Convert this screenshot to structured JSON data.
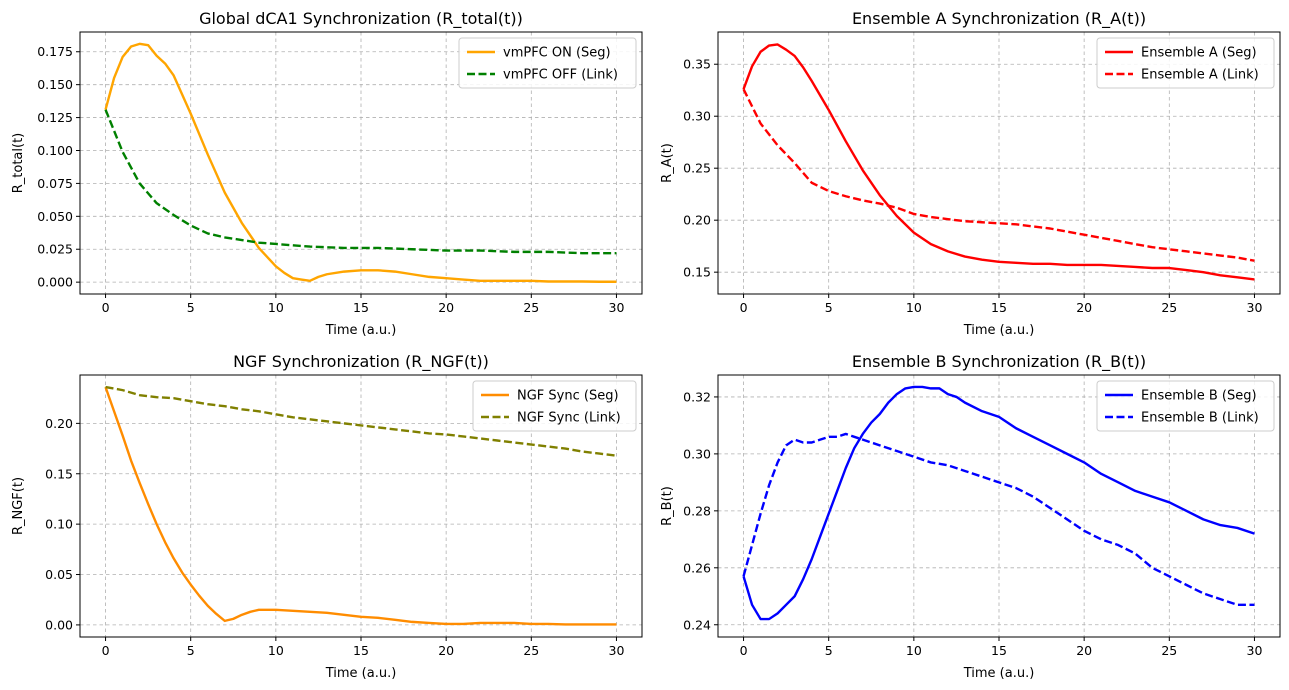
{
  "chart_data": [
    {
      "type": "line",
      "title": "Global dCA1 Synchronization (R_total(t))",
      "xlabel": "Time (a.u.)",
      "ylabel": "R_total(t)",
      "xlim": [
        -1.5,
        31.5
      ],
      "ylim": [
        -0.009,
        0.19
      ],
      "xticks": [
        0,
        5,
        10,
        15,
        20,
        25,
        30
      ],
      "yticks": [
        0.0,
        0.025,
        0.05,
        0.075,
        0.1,
        0.125,
        0.15,
        0.175
      ],
      "ytick_labels": [
        "0.000",
        "0.025",
        "0.050",
        "0.075",
        "0.100",
        "0.125",
        "0.150",
        "0.175"
      ],
      "grid": true,
      "legend_position": "top-right",
      "series": [
        {
          "name": "vmPFC ON (Seg)",
          "color": "#ffa500",
          "style": "solid",
          "x": [
            0,
            0.5,
            1,
            1.5,
            2,
            2.5,
            3,
            3.5,
            4,
            5,
            6,
            7,
            8,
            9,
            10,
            10.5,
            11,
            11.5,
            12,
            12.5,
            13,
            14,
            15,
            16,
            17,
            18,
            19,
            20,
            21,
            22,
            23,
            24,
            25,
            26,
            27,
            28,
            29,
            30
          ],
          "y": [
            0.131,
            0.155,
            0.171,
            0.179,
            0.181,
            0.18,
            0.172,
            0.166,
            0.157,
            0.128,
            0.097,
            0.068,
            0.045,
            0.026,
            0.012,
            0.007,
            0.003,
            0.002,
            0.001,
            0.004,
            0.006,
            0.008,
            0.009,
            0.009,
            0.008,
            0.006,
            0.004,
            0.003,
            0.002,
            0.001,
            0.001,
            0.001,
            0.001,
            0.0005,
            0.0005,
            0.0005,
            0.0003,
            0.0003
          ]
        },
        {
          "name": "vmPFC OFF (Link)",
          "color": "#008000",
          "style": "dashed",
          "x": [
            0,
            1,
            2,
            3,
            4,
            5,
            6,
            7,
            8,
            9,
            10,
            11,
            12,
            14,
            16,
            18,
            20,
            22,
            24,
            26,
            28,
            30
          ],
          "y": [
            0.131,
            0.099,
            0.075,
            0.06,
            0.051,
            0.043,
            0.037,
            0.034,
            0.032,
            0.03,
            0.029,
            0.028,
            0.027,
            0.026,
            0.026,
            0.025,
            0.024,
            0.024,
            0.023,
            0.023,
            0.022,
            0.022
          ]
        }
      ]
    },
    {
      "type": "line",
      "title": "Ensemble A Synchronization (R_A(t))",
      "xlabel": "Time (a.u.)",
      "ylabel": "R_A(t)",
      "xlim": [
        -1.5,
        31.5
      ],
      "ylim": [
        0.129,
        0.381
      ],
      "xticks": [
        0,
        5,
        10,
        15,
        20,
        25,
        30
      ],
      "yticks": [
        0.15,
        0.2,
        0.25,
        0.3,
        0.35
      ],
      "ytick_labels": [
        "0.15",
        "0.20",
        "0.25",
        "0.30",
        "0.35"
      ],
      "grid": true,
      "legend_position": "top-right",
      "series": [
        {
          "name": "Ensemble A (Seg)",
          "color": "#ff0000",
          "style": "solid",
          "x": [
            0,
            0.5,
            1,
            1.5,
            2,
            2.5,
            3,
            3.5,
            4,
            5,
            6,
            7,
            8,
            9,
            10,
            11,
            12,
            13,
            14,
            15,
            16,
            17,
            18,
            19,
            20,
            21,
            22,
            23,
            24,
            25,
            26,
            27,
            28,
            29,
            30
          ],
          "y": [
            0.326,
            0.348,
            0.362,
            0.368,
            0.369,
            0.364,
            0.358,
            0.347,
            0.334,
            0.306,
            0.276,
            0.248,
            0.224,
            0.204,
            0.188,
            0.177,
            0.17,
            0.165,
            0.162,
            0.16,
            0.159,
            0.158,
            0.158,
            0.157,
            0.157,
            0.157,
            0.156,
            0.155,
            0.154,
            0.154,
            0.152,
            0.15,
            0.147,
            0.145,
            0.143
          ]
        },
        {
          "name": "Ensemble A (Link)",
          "color": "#ff0000",
          "style": "dashed",
          "x": [
            0,
            1,
            2,
            3,
            4,
            5,
            6,
            7,
            8,
            9,
            10,
            11,
            12,
            13,
            14,
            15,
            16,
            17,
            18,
            19,
            20,
            21,
            22,
            23,
            24,
            25,
            26,
            27,
            28,
            29,
            30
          ],
          "y": [
            0.326,
            0.293,
            0.272,
            0.255,
            0.236,
            0.228,
            0.223,
            0.219,
            0.216,
            0.212,
            0.206,
            0.203,
            0.201,
            0.199,
            0.198,
            0.197,
            0.196,
            0.194,
            0.192,
            0.189,
            0.186,
            0.183,
            0.18,
            0.177,
            0.174,
            0.172,
            0.17,
            0.168,
            0.166,
            0.164,
            0.161
          ]
        }
      ]
    },
    {
      "type": "line",
      "title": "NGF Synchronization (R_NGF(t))",
      "xlabel": "Time (a.u.)",
      "ylabel": "R_NGF(t)",
      "xlim": [
        -1.5,
        31.5
      ],
      "ylim": [
        -0.012,
        0.248
      ],
      "xticks": [
        0,
        5,
        10,
        15,
        20,
        25,
        30
      ],
      "yticks": [
        0.0,
        0.05,
        0.1,
        0.15,
        0.2
      ],
      "ytick_labels": [
        "0.00",
        "0.05",
        "0.10",
        "0.15",
        "0.20"
      ],
      "grid": true,
      "legend_position": "top-right",
      "series": [
        {
          "name": "NGF Sync (Seg)",
          "color": "#ff8c00",
          "style": "solid",
          "x": [
            0,
            0.5,
            1,
            1.5,
            2,
            2.5,
            3,
            3.5,
            4,
            4.5,
            5,
            5.5,
            6,
            6.5,
            7,
            7.5,
            8,
            8.5,
            9,
            9.5,
            10,
            11,
            12,
            13,
            14,
            15,
            16,
            17,
            18,
            19,
            20,
            21,
            22,
            23,
            24,
            25,
            26,
            27,
            28,
            29,
            30
          ],
          "y": [
            0.236,
            0.212,
            0.188,
            0.163,
            0.141,
            0.12,
            0.1,
            0.082,
            0.066,
            0.052,
            0.04,
            0.029,
            0.019,
            0.011,
            0.004,
            0.006,
            0.01,
            0.013,
            0.015,
            0.015,
            0.015,
            0.014,
            0.013,
            0.012,
            0.01,
            0.008,
            0.007,
            0.005,
            0.003,
            0.002,
            0.001,
            0.001,
            0.002,
            0.002,
            0.002,
            0.001,
            0.001,
            0.0005,
            0.0005,
            0.0005,
            0.0005
          ]
        },
        {
          "name": "NGF Sync (Link)",
          "color": "#808000",
          "style": "dashed",
          "x": [
            0,
            1,
            2,
            3,
            4,
            5,
            6,
            7,
            8,
            9,
            10,
            11,
            12,
            13,
            14,
            15,
            16,
            17,
            18,
            19,
            20,
            21,
            22,
            23,
            24,
            25,
            26,
            27,
            28,
            29,
            30
          ],
          "y": [
            0.236,
            0.233,
            0.228,
            0.226,
            0.225,
            0.222,
            0.219,
            0.217,
            0.214,
            0.212,
            0.209,
            0.206,
            0.204,
            0.202,
            0.2,
            0.198,
            0.196,
            0.194,
            0.192,
            0.19,
            0.189,
            0.187,
            0.185,
            0.183,
            0.181,
            0.179,
            0.177,
            0.175,
            0.172,
            0.17,
            0.168
          ]
        }
      ]
    },
    {
      "type": "line",
      "title": "Ensemble B Synchronization (R_B(t))",
      "xlabel": "Time (a.u.)",
      "ylabel": "R_B(t)",
      "xlim": [
        -1.5,
        31.5
      ],
      "ylim": [
        0.2357,
        0.3277
      ],
      "xticks": [
        0,
        5,
        10,
        15,
        20,
        25,
        30
      ],
      "yticks": [
        0.24,
        0.26,
        0.28,
        0.3,
        0.32
      ],
      "ytick_labels": [
        "0.24",
        "0.26",
        "0.28",
        "0.30",
        "0.32"
      ],
      "grid": true,
      "legend_position": "top-right",
      "series": [
        {
          "name": "Ensemble B (Seg)",
          "color": "#0000ff",
          "style": "solid",
          "x": [
            0,
            0.5,
            1,
            1.5,
            2,
            2.5,
            3,
            3.5,
            4,
            4.5,
            5,
            5.5,
            6,
            6.5,
            7,
            7.5,
            8,
            8.5,
            9,
            9.5,
            10,
            10.5,
            11,
            11.5,
            12,
            12.5,
            13,
            14,
            15,
            16,
            17,
            18,
            19,
            20,
            21,
            22,
            23,
            24,
            25,
            26,
            27,
            28,
            29,
            30
          ],
          "y": [
            0.257,
            0.247,
            0.242,
            0.242,
            0.244,
            0.247,
            0.25,
            0.256,
            0.263,
            0.271,
            0.279,
            0.287,
            0.295,
            0.302,
            0.307,
            0.311,
            0.314,
            0.318,
            0.321,
            0.323,
            0.3235,
            0.3235,
            0.323,
            0.323,
            0.321,
            0.32,
            0.318,
            0.315,
            0.313,
            0.309,
            0.306,
            0.303,
            0.3,
            0.297,
            0.293,
            0.29,
            0.287,
            0.285,
            0.283,
            0.28,
            0.277,
            0.275,
            0.274,
            0.272
          ]
        },
        {
          "name": "Ensemble B (Link)",
          "color": "#0000ff",
          "style": "dashed",
          "x": [
            0,
            0.5,
            1,
            1.5,
            2,
            2.5,
            3,
            3.5,
            4,
            4.5,
            5,
            5.5,
            6,
            6.5,
            7,
            8,
            9,
            10,
            11,
            12,
            13,
            14,
            15,
            16,
            17,
            18,
            19,
            20,
            21,
            22,
            23,
            24,
            25,
            26,
            27,
            28,
            29,
            30
          ],
          "y": [
            0.257,
            0.268,
            0.279,
            0.289,
            0.297,
            0.303,
            0.305,
            0.304,
            0.304,
            0.305,
            0.306,
            0.306,
            0.307,
            0.306,
            0.305,
            0.303,
            0.301,
            0.299,
            0.297,
            0.296,
            0.294,
            0.292,
            0.29,
            0.288,
            0.285,
            0.281,
            0.277,
            0.273,
            0.27,
            0.268,
            0.265,
            0.26,
            0.257,
            0.254,
            0.251,
            0.249,
            0.247,
            0.247
          ]
        }
      ]
    }
  ]
}
